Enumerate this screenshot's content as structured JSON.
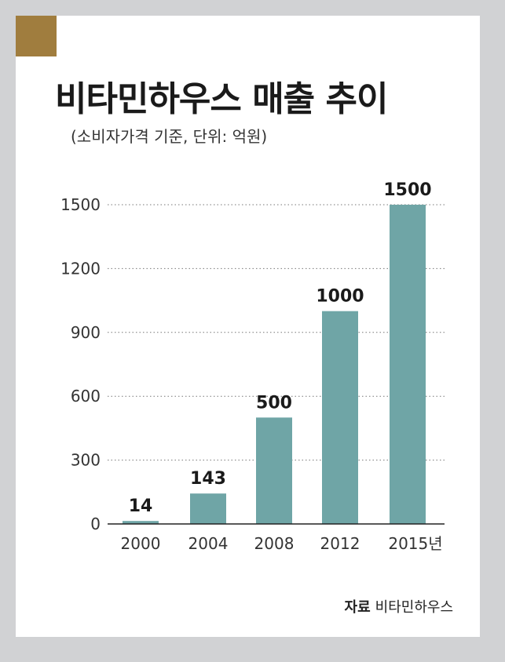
{
  "title": "비타민하우스 매출 추이",
  "subtitle": "(소비자가격 기준, 단위: 억원)",
  "source": {
    "label": "자료",
    "value": "비타민하우스"
  },
  "colors": {
    "bar": "#6fa5a6",
    "border": "#d1d2d4",
    "accent": "#a07d3e"
  },
  "chart_data": {
    "type": "bar",
    "categories": [
      "2000",
      "2004",
      "2008",
      "2012",
      "2015년"
    ],
    "values": [
      14,
      143,
      500,
      1000,
      1500
    ],
    "data_labels": [
      "14",
      "143",
      "500",
      "1000",
      "1500"
    ],
    "yticks": [
      "0",
      "300",
      "600",
      "900",
      "1200",
      "1500"
    ],
    "ylim": [
      0,
      1500
    ],
    "grid": "dotted horizontal"
  }
}
